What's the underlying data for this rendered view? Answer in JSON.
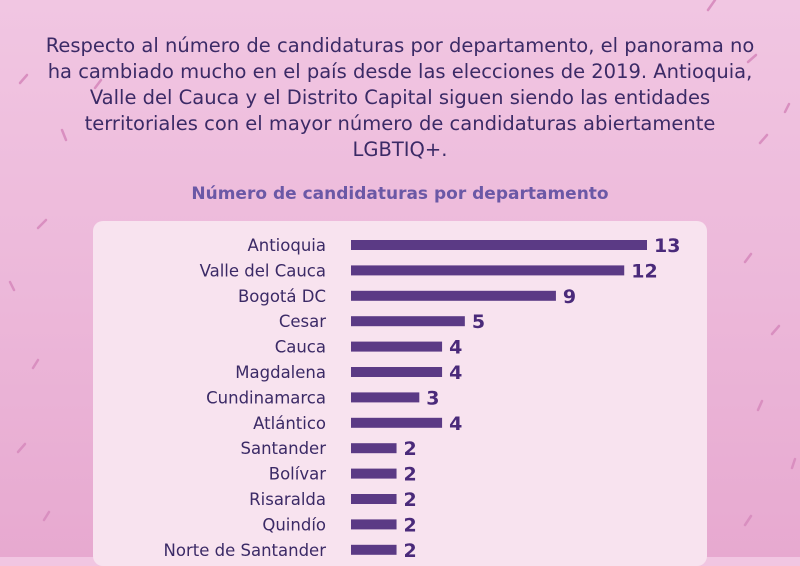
{
  "intro_text": "Respecto al número de candidaturas por departamento, el panorama no ha cambiado mucho en el país desde las elecciones de 2019. Antioquia, Valle del Cauca y el Distrito Capital siguen siendo las entidades territoriales con el mayor número de candidaturas abiertamente LGBTIQ+.",
  "colors": {
    "bar": "#5b3a85",
    "text": "#3b2a66",
    "title": "#6b58a6",
    "panel": "#f8e3ef"
  },
  "chart_data": {
    "type": "bar",
    "orientation": "horizontal",
    "title": "Número de candidaturas por departamento",
    "categories": [
      "Antioquia",
      "Valle del Cauca",
      "Bogotá DC",
      "Cesar",
      "Cauca",
      "Magdalena",
      "Cundinamarca",
      "Atlántico",
      "Santander",
      "Bolívar",
      "Risaralda",
      "Quindío",
      "Norte de Santander"
    ],
    "values": [
      13,
      12,
      9,
      5,
      4,
      4,
      3,
      4,
      2,
      2,
      2,
      2,
      2
    ],
    "xlim": [
      0,
      13
    ],
    "grid": false,
    "data_labels": true
  }
}
